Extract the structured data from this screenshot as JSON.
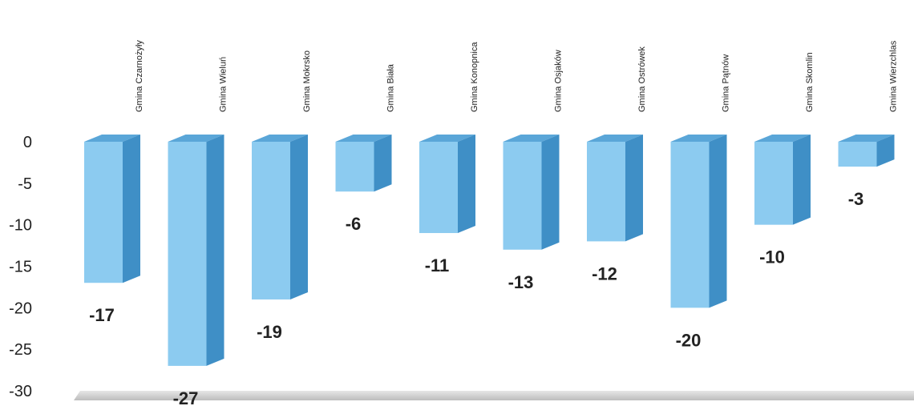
{
  "chart_data": {
    "type": "bar",
    "categories": [
      "Gmina Czarnożyły",
      "Gmina Wieluń",
      "Gmina Mokrsko",
      "Gmina Biała",
      "Gmina Konopnica",
      "Gmina Osjaków",
      "Gmina Ostrówek",
      "Gmina Pątnów",
      "Gmina Skomlin",
      "Gmina Wierzchlas"
    ],
    "values": [
      -17,
      -27,
      -19,
      -6,
      -11,
      -13,
      -12,
      -20,
      -10,
      -3
    ],
    "data_labels": [
      "-17",
      "-27",
      "-19",
      "-6",
      "-11",
      "-13",
      "-12",
      "-20",
      "-10",
      "-3"
    ],
    "yticks": [
      "0",
      "-5",
      "-10",
      "-15",
      "-20",
      "-25",
      "-30"
    ],
    "ylim": [
      -30,
      0
    ],
    "title": "",
    "xlabel": "",
    "ylabel": "",
    "grid": false,
    "legend": "none",
    "style": "3d-column",
    "colors": {
      "bar_front": "#8ccbf0",
      "bar_side": "#3f8fc6",
      "bar_top": "#5aa6d8",
      "floor": "#cfcfcf"
    }
  }
}
